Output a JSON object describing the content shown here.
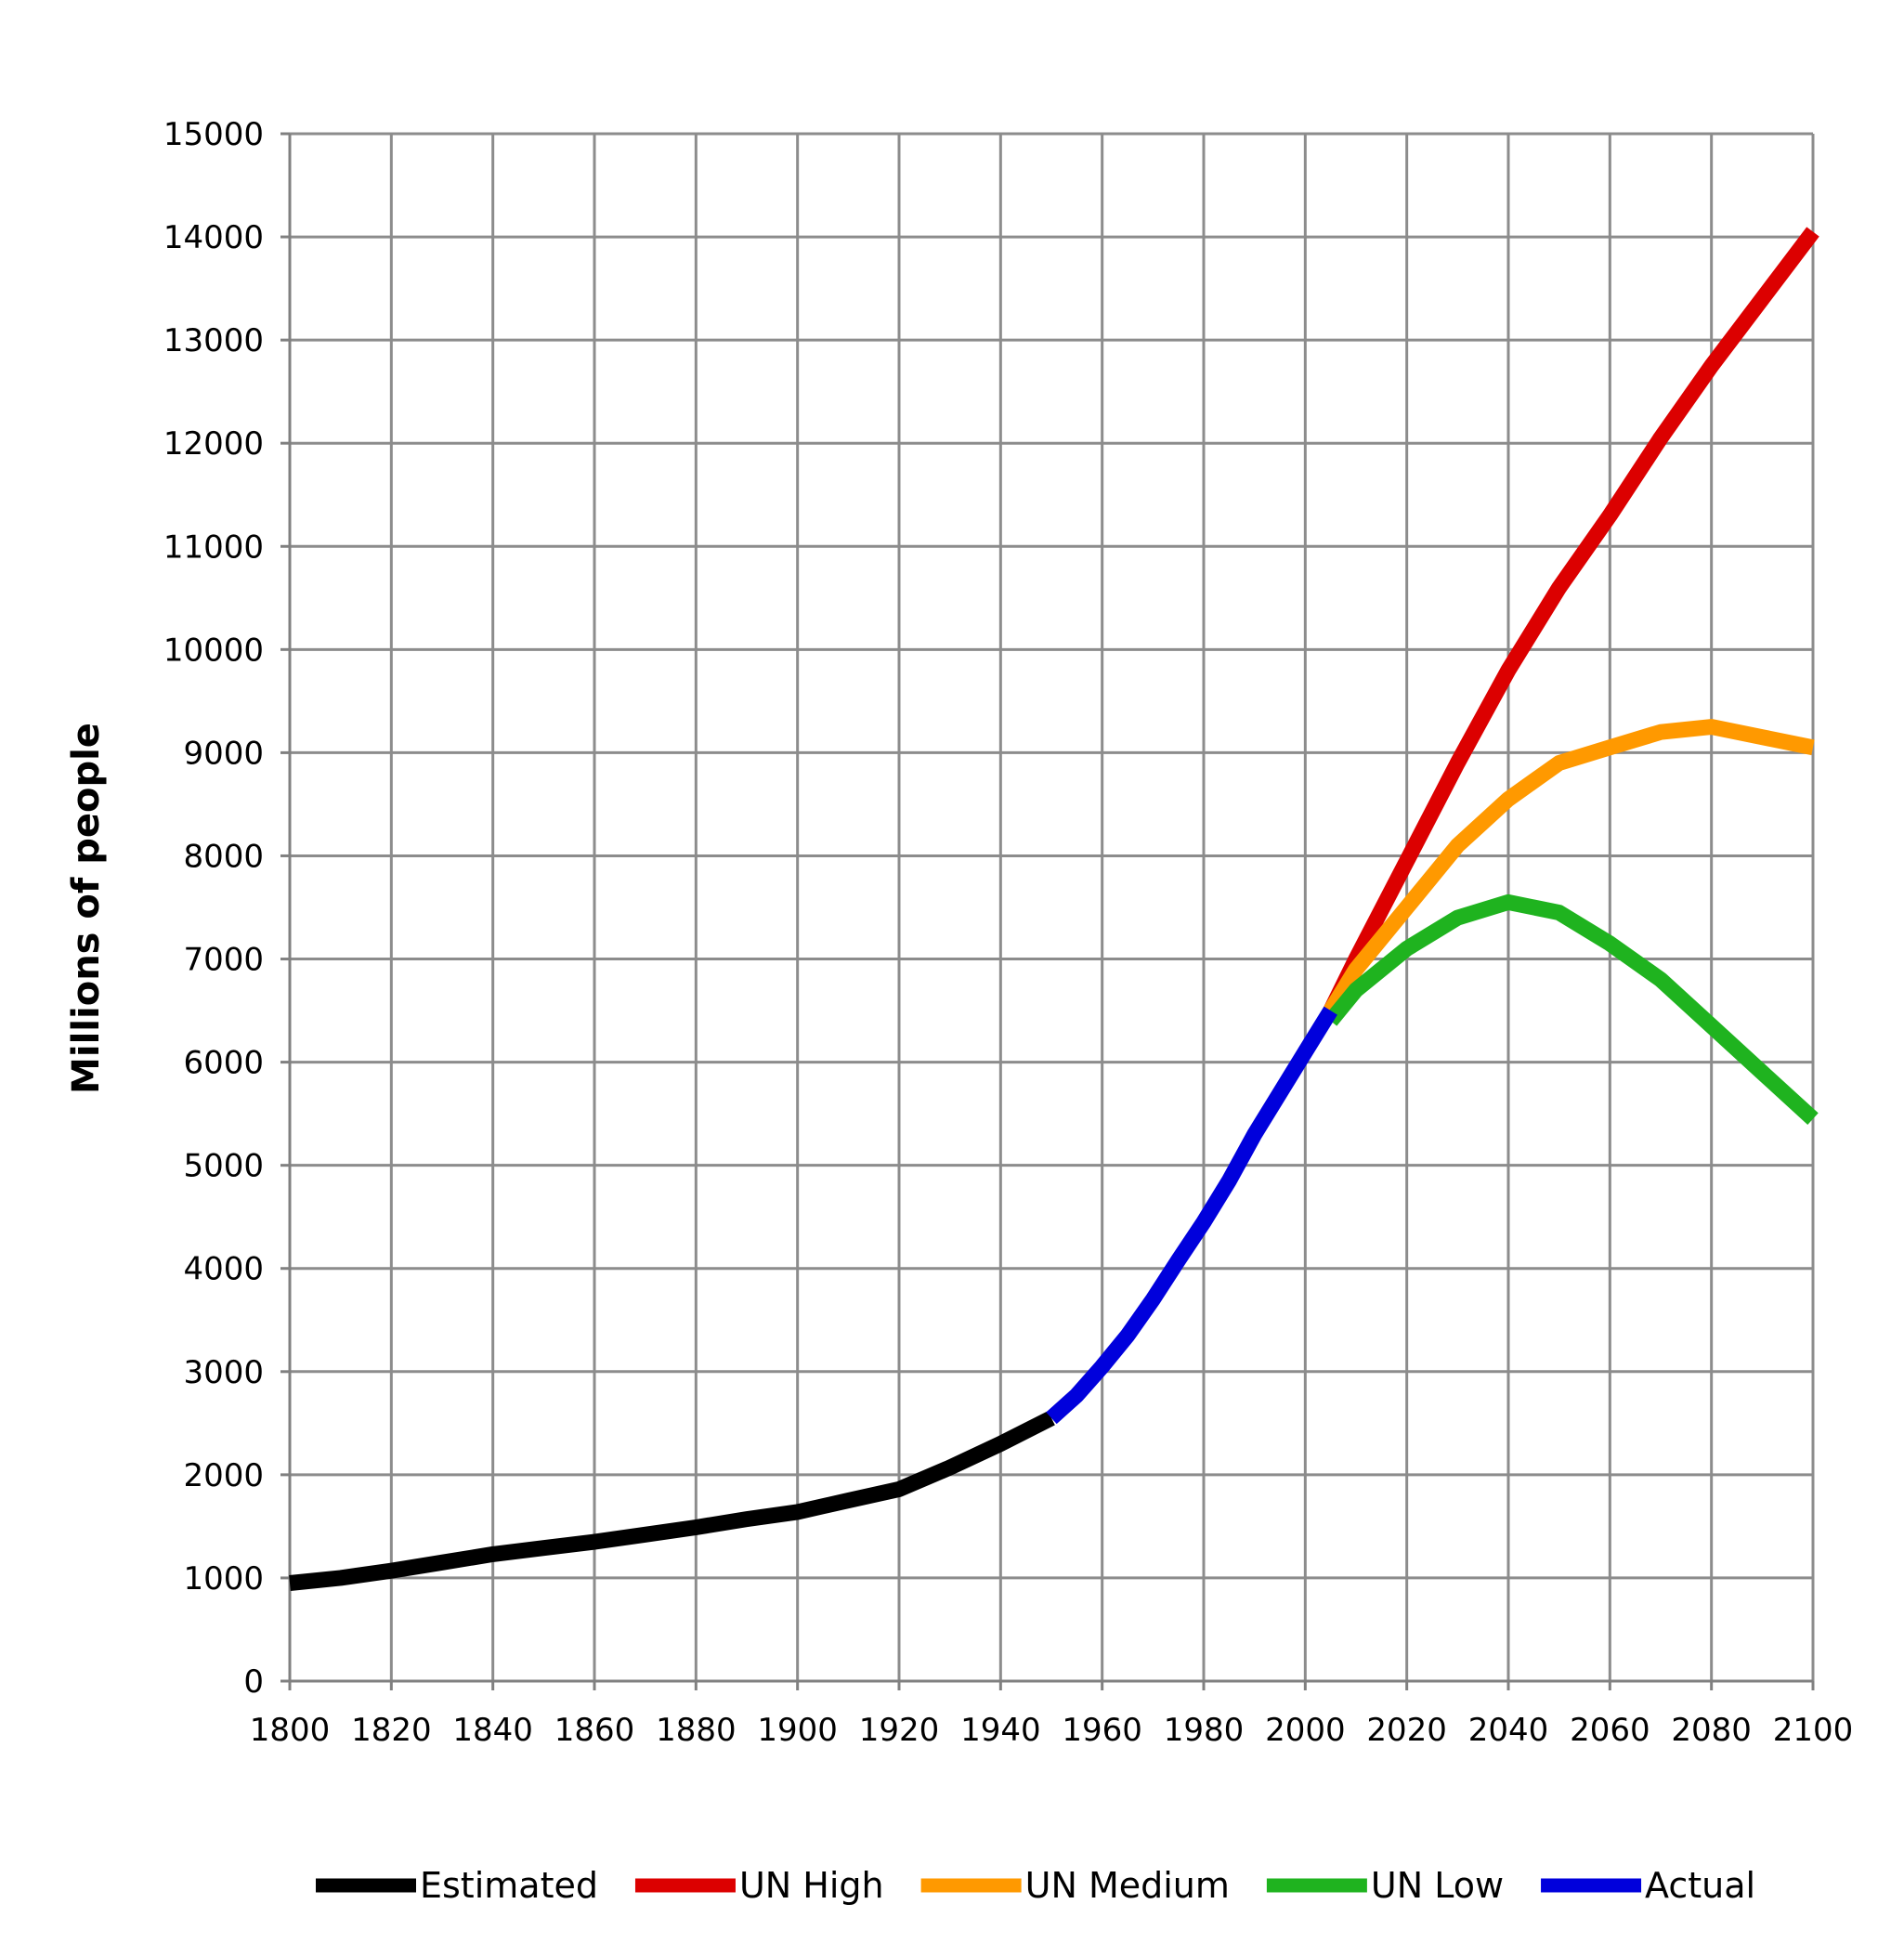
{
  "chart_data": {
    "type": "line",
    "ylabel": "Millions of people",
    "xlim": [
      1800,
      2100
    ],
    "ylim": [
      0,
      15000
    ],
    "x_ticks": [
      "1800",
      "1820",
      "1840",
      "1860",
      "1880",
      "1900",
      "1920",
      "1940",
      "1960",
      "1980",
      "2000",
      "2020",
      "2040",
      "2060",
      "2080",
      "2100"
    ],
    "y_ticks": [
      "0",
      "1000",
      "2000",
      "3000",
      "4000",
      "5000",
      "6000",
      "7000",
      "8000",
      "9000",
      "10000",
      "11000",
      "12000",
      "13000",
      "14000",
      "15000"
    ],
    "grid": true,
    "legend_position": "bottom",
    "series": [
      {
        "name": "Estimated",
        "color": "#000000",
        "points": [
          [
            1800,
            950
          ],
          [
            1810,
            1000
          ],
          [
            1820,
            1070
          ],
          [
            1830,
            1150
          ],
          [
            1840,
            1230
          ],
          [
            1850,
            1290
          ],
          [
            1860,
            1350
          ],
          [
            1870,
            1420
          ],
          [
            1880,
            1490
          ],
          [
            1890,
            1570
          ],
          [
            1900,
            1640
          ],
          [
            1910,
            1750
          ],
          [
            1920,
            1860
          ],
          [
            1930,
            2070
          ],
          [
            1940,
            2300
          ],
          [
            1950,
            2550
          ]
        ]
      },
      {
        "name": "UN High",
        "color": "#dc0000",
        "points": [
          [
            2005,
            6500
          ],
          [
            2010,
            7000
          ],
          [
            2020,
            7950
          ],
          [
            2030,
            8900
          ],
          [
            2040,
            9800
          ],
          [
            2050,
            10600
          ],
          [
            2060,
            11300
          ],
          [
            2070,
            12050
          ],
          [
            2080,
            12750
          ],
          [
            2090,
            13400
          ],
          [
            2100,
            14050
          ]
        ]
      },
      {
        "name": "UN Medium",
        "color": "#ff9900",
        "points": [
          [
            2005,
            6500
          ],
          [
            2010,
            6900
          ],
          [
            2020,
            7500
          ],
          [
            2030,
            8100
          ],
          [
            2040,
            8550
          ],
          [
            2050,
            8900
          ],
          [
            2060,
            9050
          ],
          [
            2070,
            9200
          ],
          [
            2080,
            9250
          ],
          [
            2090,
            9150
          ],
          [
            2100,
            9050
          ]
        ]
      },
      {
        "name": "UN Low",
        "color": "#1fb31f",
        "points": [
          [
            2005,
            6400
          ],
          [
            2010,
            6700
          ],
          [
            2020,
            7100
          ],
          [
            2030,
            7400
          ],
          [
            2040,
            7550
          ],
          [
            2050,
            7450
          ],
          [
            2060,
            7150
          ],
          [
            2070,
            6800
          ],
          [
            2080,
            6350
          ],
          [
            2090,
            5900
          ],
          [
            2100,
            5450
          ]
        ]
      },
      {
        "name": "Actual",
        "color": "#0000dc",
        "points": [
          [
            1950,
            2550
          ],
          [
            1955,
            2770
          ],
          [
            1960,
            3050
          ],
          [
            1965,
            3350
          ],
          [
            1970,
            3700
          ],
          [
            1975,
            4080
          ],
          [
            1980,
            4450
          ],
          [
            1985,
            4850
          ],
          [
            1990,
            5300
          ],
          [
            1995,
            5700
          ],
          [
            2000,
            6100
          ],
          [
            2005,
            6500
          ]
        ]
      }
    ]
  }
}
